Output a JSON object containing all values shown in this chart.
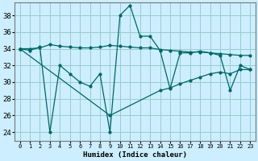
{
  "title": "",
  "xlabel": "Humidex (Indice chaleur)",
  "ylabel": "",
  "xlim": [
    -0.5,
    23.5
  ],
  "ylim": [
    23.0,
    39.5
  ],
  "yticks": [
    24,
    26,
    28,
    30,
    32,
    34,
    36,
    38
  ],
  "xticks": [
    0,
    1,
    2,
    3,
    4,
    5,
    6,
    7,
    8,
    9,
    10,
    11,
    12,
    13,
    14,
    15,
    16,
    17,
    18,
    19,
    20,
    21,
    22,
    23
  ],
  "bg_color": "#cceeff",
  "line_color": "#006666",
  "grid_color": "#99cccc",
  "line1_x": [
    0,
    1,
    2,
    3,
    4,
    5,
    6,
    7,
    8,
    9,
    10,
    11,
    12,
    13,
    14,
    15,
    16,
    17,
    18,
    19,
    20,
    21,
    22,
    23
  ],
  "line1_y": [
    34.0,
    34.0,
    34.1,
    34.5,
    34.3,
    34.2,
    34.1,
    34.1,
    34.2,
    34.4,
    34.3,
    34.2,
    34.1,
    34.1,
    33.9,
    33.8,
    33.7,
    33.6,
    33.6,
    33.5,
    33.4,
    33.3,
    33.2,
    33.2
  ],
  "line2_x": [
    0,
    1,
    2,
    3,
    4,
    5,
    6,
    7,
    8,
    9,
    10,
    11,
    12,
    13,
    14,
    15,
    16,
    17,
    18,
    19,
    20,
    21,
    22,
    23
  ],
  "line2_y": [
    34.0,
    33.8,
    34.2,
    24.0,
    32.0,
    31.0,
    30.0,
    29.5,
    31.0,
    24.0,
    38.0,
    39.2,
    35.5,
    35.5,
    33.8,
    29.2,
    33.5,
    33.5,
    33.7,
    33.5,
    33.2,
    29.0,
    32.0,
    31.5
  ],
  "line3_x": [
    0,
    9,
    14,
    15,
    16,
    17,
    18,
    19,
    20,
    21,
    22,
    23
  ],
  "line3_y": [
    34.0,
    26.0,
    29.0,
    29.3,
    29.8,
    30.2,
    30.6,
    31.0,
    31.2,
    31.0,
    31.5,
    31.5
  ]
}
